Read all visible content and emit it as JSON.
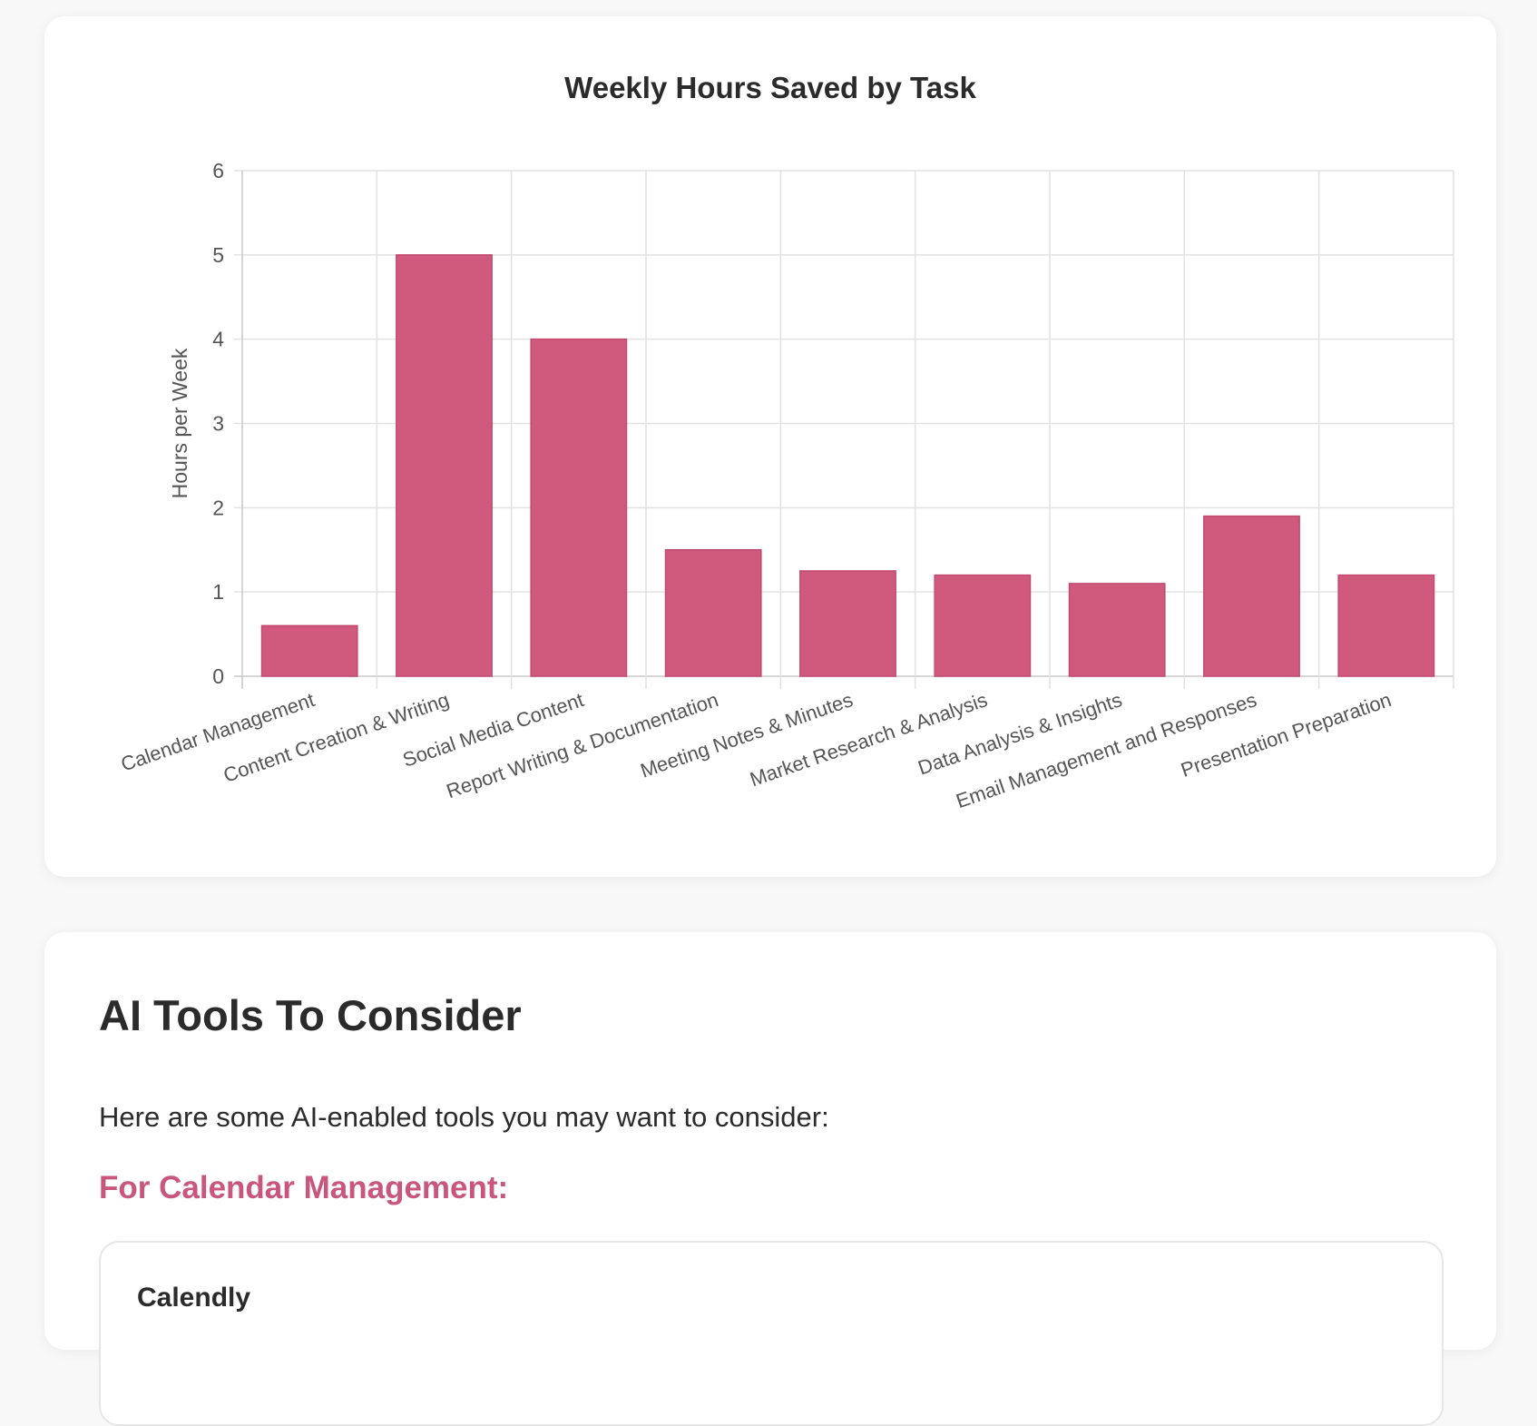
{
  "chart_data": {
    "type": "bar",
    "title": "Weekly Hours Saved by Task",
    "ylabel": "Hours per Week",
    "xlabel": "",
    "ylim": [
      0,
      6
    ],
    "yticks": [
      "0",
      "1",
      "2",
      "3",
      "4",
      "5",
      "6"
    ],
    "grid": true,
    "categories": [
      "Calendar Management",
      "Content Creation & Writing",
      "Social Media Content",
      "Report Writing & Documentation",
      "Meeting Notes & Minutes",
      "Market Research & Analysis",
      "Data Analysis & Insights",
      "Email Management and Responses",
      "Presentation Preparation"
    ],
    "values": [
      0.6,
      5.0,
      4.0,
      1.5,
      1.25,
      1.2,
      1.1,
      1.9,
      1.2
    ],
    "bar_color": "#cf5a7e",
    "bar_border_color": "#c24a70"
  },
  "tools": {
    "title": "AI Tools To Consider",
    "intro": "Here are some AI-enabled tools you may want to consider:",
    "section_title": "For Calendar Management:",
    "first_tool_name": "Calendly"
  },
  "colors": {
    "accent": "#c9577d",
    "page_bg": "#f8f8f8",
    "card_bg": "#ffffff"
  }
}
